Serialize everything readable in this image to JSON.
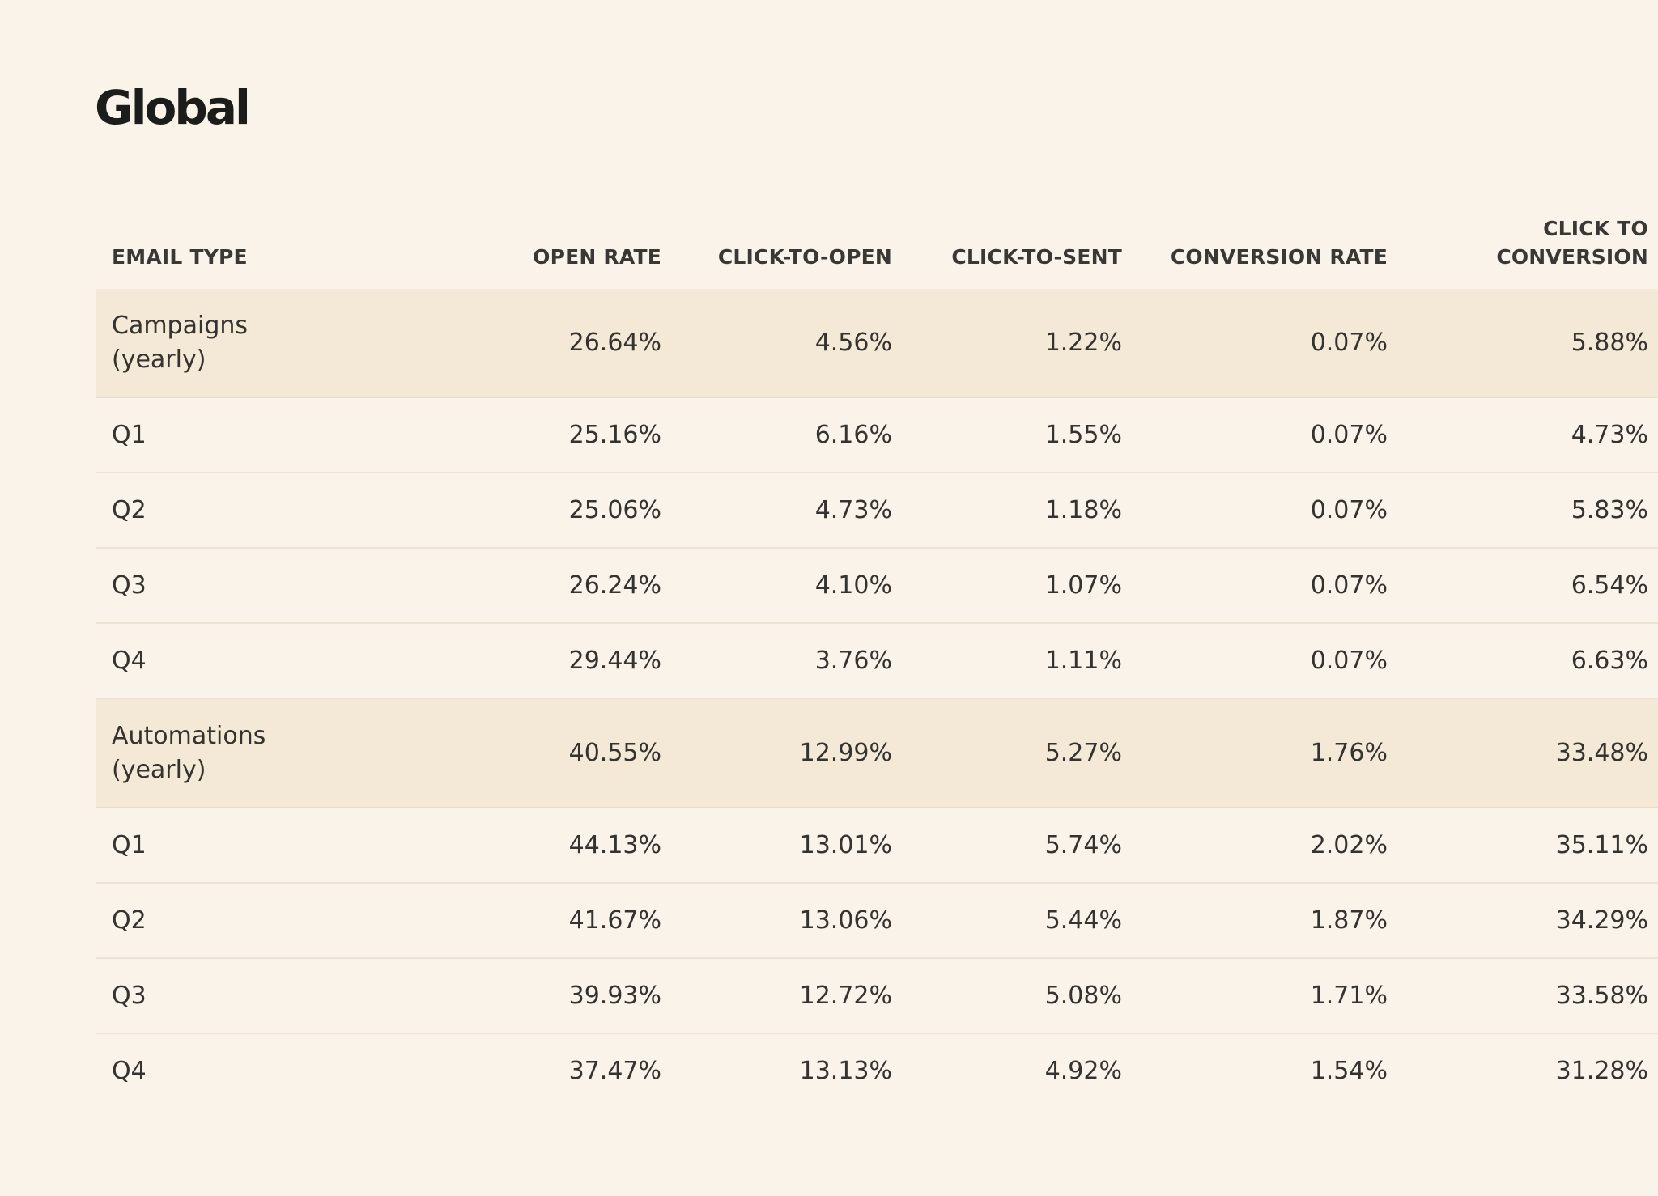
{
  "title": "Global",
  "columns": [
    "EMAIL TYPE",
    "OPEN RATE",
    "CLICK-TO-OPEN",
    "CLICK-TO-SENT",
    "CONVERSION RATE",
    "CLICK TO CONVERSION"
  ],
  "rows": [
    {
      "type": "summary",
      "label_line1": "Campaigns",
      "label_line2": "(yearly)",
      "values": [
        "26.64%",
        "4.56%",
        "1.22%",
        "0.07%",
        "5.88%"
      ]
    },
    {
      "type": "quarter",
      "label": "Q1",
      "values": [
        "25.16%",
        "6.16%",
        "1.55%",
        "0.07%",
        "4.73%"
      ]
    },
    {
      "type": "quarter",
      "label": "Q2",
      "values": [
        "25.06%",
        "4.73%",
        "1.18%",
        "0.07%",
        "5.83%"
      ]
    },
    {
      "type": "quarter",
      "label": "Q3",
      "values": [
        "26.24%",
        "4.10%",
        "1.07%",
        "0.07%",
        "6.54%"
      ]
    },
    {
      "type": "quarter",
      "label": "Q4",
      "values": [
        "29.44%",
        "3.76%",
        "1.11%",
        "0.07%",
        "6.63%"
      ]
    },
    {
      "type": "summary",
      "label_line1": "Automations",
      "label_line2": "(yearly)",
      "values": [
        "40.55%",
        "12.99%",
        "5.27%",
        "1.76%",
        "33.48%"
      ]
    },
    {
      "type": "quarter",
      "label": "Q1",
      "values": [
        "44.13%",
        "13.01%",
        "5.74%",
        "2.02%",
        "35.11%"
      ]
    },
    {
      "type": "quarter",
      "label": "Q2",
      "values": [
        "41.67%",
        "13.06%",
        "5.44%",
        "1.87%",
        "34.29%"
      ]
    },
    {
      "type": "quarter",
      "label": "Q3",
      "values": [
        "39.93%",
        "12.72%",
        "5.08%",
        "1.71%",
        "33.58%"
      ]
    },
    {
      "type": "quarter",
      "label": "Q4",
      "values": [
        "37.47%",
        "13.13%",
        "4.92%",
        "1.54%",
        "31.28%"
      ]
    }
  ]
}
